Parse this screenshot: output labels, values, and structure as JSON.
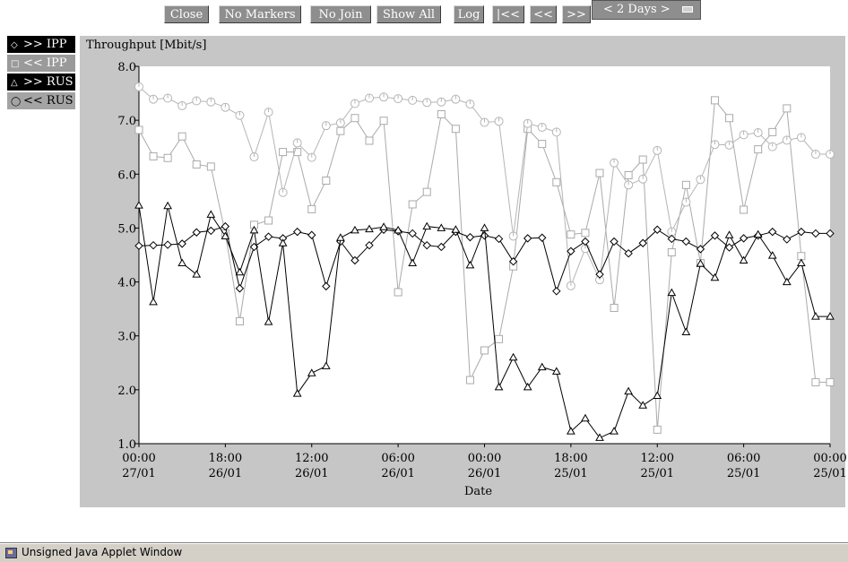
{
  "toolbar": {
    "buttons": [
      {
        "id": "close",
        "label": "Close"
      },
      {
        "id": "no-markers",
        "label": "No Markers"
      },
      {
        "id": "no-join",
        "label": "No Join"
      },
      {
        "id": "show-all",
        "label": "Show All"
      },
      {
        "id": "log",
        "label": "Log"
      },
      {
        "id": "first",
        "label": "|<<"
      },
      {
        "id": "prev",
        "label": "<<"
      },
      {
        "id": "next",
        "label": ">>"
      }
    ],
    "range_label": "< 2 Days >"
  },
  "status_bar": {
    "text": "Unsigned Java Applet Window"
  },
  "colors": {
    "panel": "#c6c6c6",
    "series_dark": "#000000",
    "series_light": "#aaaaaa",
    "series_light2": "#b5b5b5"
  },
  "chart_data": {
    "type": "line",
    "title": "Throughput [Mbit/s]",
    "xlabel": "Date",
    "ylabel": "Throughput [Mbit/s]",
    "ylim": [
      1.0,
      8.0
    ],
    "yticks": [
      "8.0",
      "7.0",
      "6.0",
      "5.0",
      "4.0",
      "3.0",
      "2.0",
      "1.0"
    ],
    "xlim": [
      0,
      48
    ],
    "xticks": [
      {
        "at": 0,
        "time": "00:00",
        "date": "27/01"
      },
      {
        "at": 6,
        "time": "18:00",
        "date": "26/01"
      },
      {
        "at": 12,
        "time": "12:00",
        "date": "26/01"
      },
      {
        "at": 18,
        "time": "06:00",
        "date": "26/01"
      },
      {
        "at": 24,
        "time": "00:00",
        "date": "26/01"
      },
      {
        "at": 30,
        "time": "18:00",
        "date": "25/01"
      },
      {
        "at": 36,
        "time": "12:00",
        "date": "25/01"
      },
      {
        "at": 42,
        "time": "06:00",
        "date": "25/01"
      },
      {
        "at": 48,
        "time": "00:00",
        "date": "25/01"
      }
    ],
    "legend_placement": "left",
    "series": [
      {
        "name": ">> IPP",
        "marker": "diamond",
        "color": "#000000",
        "legend_bg": "#000000",
        "legend_fg": "#ffffff",
        "x": [
          0,
          1,
          2,
          3,
          4,
          5,
          6,
          7,
          8,
          9,
          10,
          11,
          12,
          13,
          14,
          15,
          16,
          17,
          18,
          19,
          20,
          21,
          22,
          23,
          24,
          25,
          26,
          27,
          28,
          29,
          30,
          31,
          32,
          33,
          34,
          35,
          36,
          37,
          38,
          39,
          40,
          41,
          42,
          43,
          44,
          45,
          46,
          47,
          48
        ],
        "y": [
          4.67,
          4.68,
          4.69,
          4.71,
          4.92,
          4.95,
          5.03,
          3.88,
          4.65,
          4.84,
          4.81,
          4.93,
          4.87,
          3.92,
          4.75,
          4.4,
          4.68,
          4.97,
          4.94,
          4.9,
          4.68,
          4.65,
          4.93,
          4.83,
          4.86,
          4.8,
          4.38,
          4.81,
          4.82,
          3.83,
          4.57,
          4.75,
          4.14,
          4.75,
          4.53,
          4.72,
          4.97,
          4.8,
          4.75,
          4.61,
          4.86,
          4.64,
          4.81,
          4.86,
          4.93,
          4.79,
          4.93,
          4.9,
          4.9
        ]
      },
      {
        "name": "<< IPP",
        "marker": "square",
        "color": "#aaaaaa",
        "legend_bg": "#9a9a9a",
        "legend_fg": "#ffffff",
        "x": [
          0,
          1,
          2,
          3,
          4,
          5,
          6,
          7,
          8,
          9,
          10,
          11,
          12,
          13,
          14,
          15,
          16,
          17,
          18,
          19,
          20,
          21,
          22,
          23,
          24,
          25,
          26,
          27,
          28,
          29,
          30,
          31,
          32,
          33,
          34,
          35,
          36,
          37,
          38,
          39,
          40,
          41,
          42,
          43,
          44,
          45,
          46,
          47,
          48
        ],
        "y": [
          6.82,
          6.33,
          6.3,
          6.7,
          6.18,
          6.14,
          4.9,
          3.27,
          5.06,
          5.14,
          6.41,
          6.41,
          5.35,
          5.88,
          6.8,
          7.04,
          6.62,
          6.99,
          3.81,
          5.44,
          5.67,
          7.11,
          6.84,
          2.18,
          2.73,
          2.94,
          4.29,
          6.84,
          6.56,
          5.85,
          4.88,
          4.91,
          6.02,
          3.52,
          5.98,
          6.27,
          1.26,
          4.55,
          5.8,
          4.35,
          7.37,
          7.04,
          5.34,
          6.46,
          6.78,
          7.22,
          4.48,
          2.14,
          2.14
        ]
      },
      {
        "name": ">> RUS",
        "marker": "triangle",
        "color": "#000000",
        "legend_bg": "#000000",
        "legend_fg": "#ffffff",
        "x": [
          0,
          1,
          2,
          3,
          4,
          5,
          6,
          7,
          8,
          9,
          10,
          11,
          12,
          13,
          14,
          15,
          16,
          17,
          18,
          19,
          20,
          21,
          22,
          23,
          24,
          25,
          26,
          27,
          28,
          29,
          30,
          31,
          32,
          33,
          34,
          35,
          36,
          37,
          38,
          39,
          40,
          41,
          42,
          43,
          44,
          45,
          46,
          47,
          48
        ],
        "y": [
          5.42,
          3.63,
          5.41,
          4.35,
          4.14,
          5.25,
          4.85,
          4.18,
          4.96,
          3.26,
          4.72,
          1.93,
          2.31,
          2.44,
          4.82,
          4.96,
          4.98,
          5.02,
          4.96,
          4.35,
          5.03,
          5.0,
          4.97,
          4.31,
          5.0,
          2.05,
          2.6,
          2.05,
          2.42,
          2.34,
          1.23,
          1.47,
          1.11,
          1.23,
          1.97,
          1.71,
          1.89,
          3.8,
          3.07,
          4.34,
          4.08,
          4.87,
          4.4,
          4.88,
          4.49,
          4.0,
          4.35,
          3.36,
          3.36
        ]
      },
      {
        "name": "<< RUS",
        "marker": "circle",
        "color": "#b5b5b5",
        "legend_bg": "#a4a4a4",
        "legend_fg": "#000000",
        "x": [
          0,
          1,
          2,
          3,
          4,
          5,
          6,
          7,
          8,
          9,
          10,
          11,
          12,
          13,
          14,
          15,
          16,
          17,
          18,
          19,
          20,
          21,
          22,
          23,
          24,
          25,
          26,
          27,
          28,
          29,
          30,
          31,
          32,
          33,
          34,
          35,
          36,
          37,
          38,
          39,
          40,
          41,
          42,
          43,
          44,
          45,
          46,
          47,
          48
        ],
        "y": [
          7.62,
          7.39,
          7.41,
          7.27,
          7.36,
          7.34,
          7.24,
          7.09,
          6.32,
          7.15,
          5.66,
          6.58,
          6.31,
          6.9,
          6.95,
          7.31,
          7.41,
          7.43,
          7.4,
          7.37,
          7.33,
          7.34,
          7.39,
          7.3,
          6.96,
          6.98,
          4.85,
          6.94,
          6.87,
          6.78,
          3.93,
          4.62,
          4.04,
          6.21,
          5.8,
          5.91,
          6.44,
          4.93,
          5.48,
          5.9,
          6.55,
          6.54,
          6.73,
          6.77,
          6.51,
          6.63,
          6.68,
          6.37,
          6.37
        ]
      }
    ]
  }
}
